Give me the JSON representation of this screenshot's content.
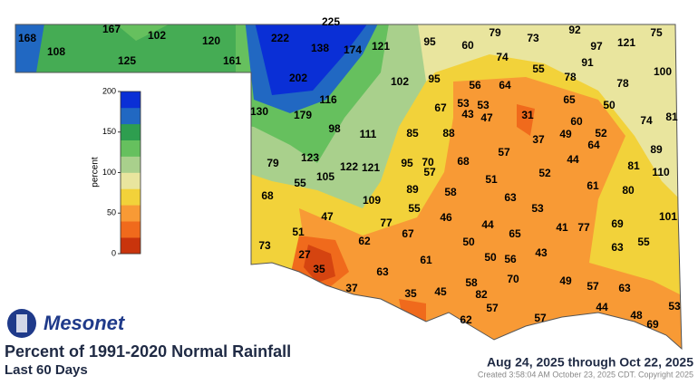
{
  "header": {
    "logo": "Mesonet",
    "title": "Percent of 1991-2020 Normal Rainfall",
    "subtitle": "Last 60 Days",
    "date_range": "Aug 24, 2025 through Oct 22, 2025",
    "created": "Created 3:58:04 AM October 23, 2025 CDT. Copyright 2025"
  },
  "map": {
    "colorbar": {
      "label": "percent",
      "range": [
        0,
        200
      ],
      "ticks": [
        0,
        50,
        100,
        150,
        200
      ],
      "colors": [
        "#c9340c",
        "#f06a1c",
        "#f89a35",
        "#f2d23a",
        "#e9e59e",
        "#a9d08c",
        "#66c05e",
        "#2e9e4f",
        "#2168c2",
        "#0a2fd6"
      ]
    },
    "station_values": [
      168,
      108,
      167,
      102,
      125,
      120,
      161,
      222,
      225,
      138,
      174,
      121,
      95,
      60,
      79,
      73,
      92,
      97,
      121,
      75,
      74,
      55,
      91,
      100,
      202,
      102,
      95,
      56,
      64,
      78,
      78,
      65,
      116,
      67,
      53,
      53,
      43,
      47,
      31,
      60,
      50,
      74,
      81,
      130,
      179,
      98,
      111,
      85,
      88,
      37,
      49,
      52,
      64,
      89,
      79,
      123,
      122,
      121,
      95,
      70,
      68,
      57,
      57,
      44,
      81,
      110,
      52,
      55,
      105,
      89,
      51,
      58,
      61,
      80,
      68,
      109,
      55,
      63,
      53,
      46,
      101,
      47,
      77,
      44,
      65,
      41,
      77,
      69,
      51,
      62,
      67,
      50,
      73,
      63,
      55,
      27,
      61,
      50,
      56,
      43,
      35,
      63,
      70,
      37,
      58,
      49,
      57,
      63,
      35,
      45,
      82,
      57,
      44,
      53,
      48,
      62,
      57,
      69
    ]
  }
}
